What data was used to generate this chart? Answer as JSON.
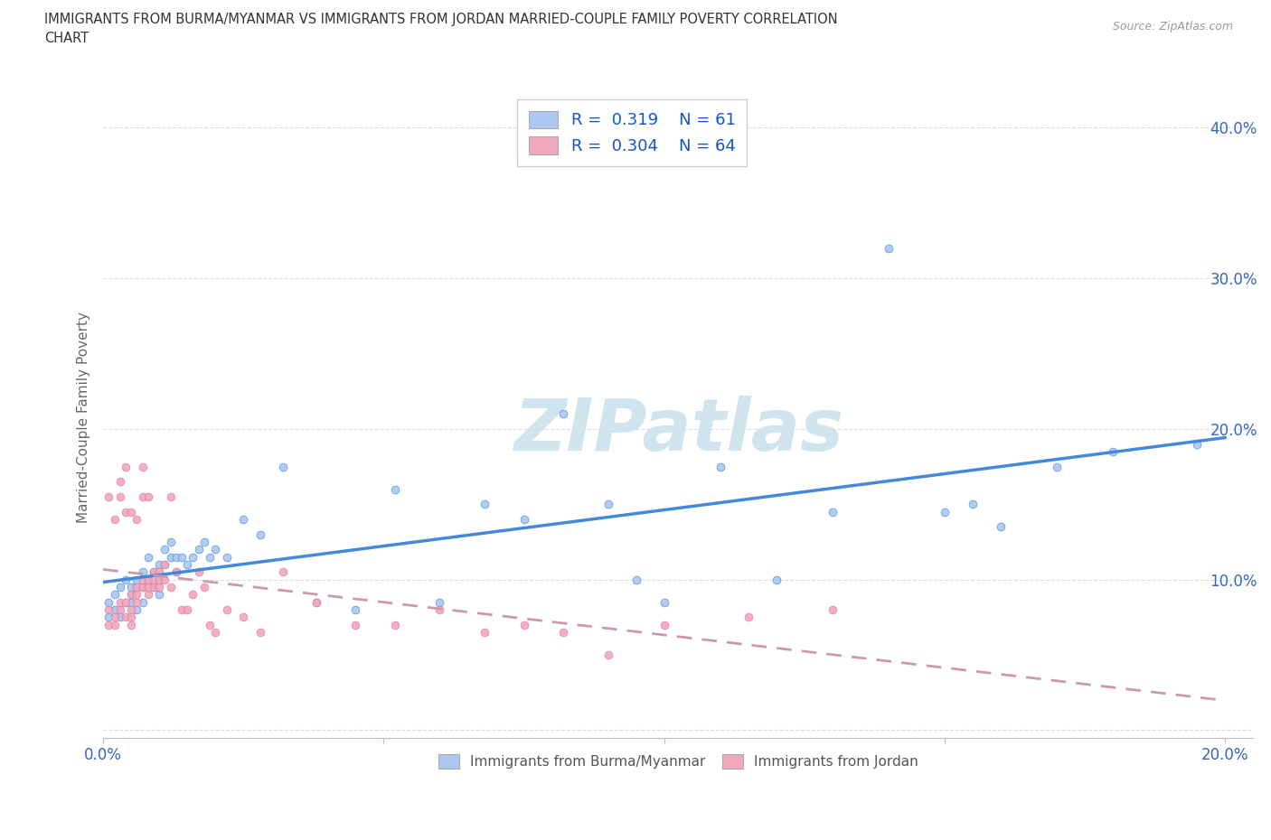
{
  "title": "IMMIGRANTS FROM BURMA/MYANMAR VS IMMIGRANTS FROM JORDAN MARRIED-COUPLE FAMILY POVERTY CORRELATION\nCHART",
  "source": "Source: ZipAtlas.com",
  "ylabel": "Married-Couple Family Poverty",
  "xlim": [
    0.0,
    0.205
  ],
  "ylim": [
    -0.005,
    0.42
  ],
  "xticks": [
    0.0,
    0.05,
    0.1,
    0.15,
    0.2
  ],
  "xtick_labels": [
    "0.0%",
    "",
    "",
    "",
    "20.0%"
  ],
  "yticks": [
    0.0,
    0.1,
    0.2,
    0.3,
    0.4
  ],
  "ytick_labels": [
    "",
    "10.0%",
    "20.0%",
    "30.0%",
    "40.0%"
  ],
  "burma_R": 0.319,
  "burma_N": 61,
  "jordan_R": 0.304,
  "jordan_N": 64,
  "burma_color": "#aac8f0",
  "jordan_color": "#f0a8bc",
  "burma_line_color": "#4488dd",
  "jordan_line_color": "#cc99aa",
  "watermark": "ZIPatlas",
  "watermark_color": "#d0e4f0",
  "grid_color": "#dddddd",
  "burma_x": [
    0.001,
    0.001,
    0.002,
    0.002,
    0.003,
    0.003,
    0.004,
    0.004,
    0.005,
    0.005,
    0.005,
    0.006,
    0.006,
    0.006,
    0.007,
    0.007,
    0.007,
    0.008,
    0.008,
    0.009,
    0.009,
    0.01,
    0.01,
    0.01,
    0.011,
    0.011,
    0.012,
    0.012,
    0.013,
    0.013,
    0.014,
    0.015,
    0.016,
    0.017,
    0.018,
    0.019,
    0.02,
    0.022,
    0.025,
    0.028,
    0.032,
    0.038,
    0.045,
    0.052,
    0.06,
    0.068,
    0.075,
    0.082,
    0.09,
    0.095,
    0.1,
    0.11,
    0.12,
    0.13,
    0.14,
    0.15,
    0.155,
    0.16,
    0.17,
    0.18,
    0.195
  ],
  "burma_y": [
    0.075,
    0.085,
    0.08,
    0.09,
    0.095,
    0.075,
    0.085,
    0.1,
    0.09,
    0.095,
    0.085,
    0.095,
    0.1,
    0.08,
    0.095,
    0.105,
    0.085,
    0.1,
    0.115,
    0.095,
    0.105,
    0.1,
    0.11,
    0.09,
    0.11,
    0.12,
    0.115,
    0.125,
    0.115,
    0.105,
    0.115,
    0.11,
    0.115,
    0.12,
    0.125,
    0.115,
    0.12,
    0.115,
    0.14,
    0.13,
    0.175,
    0.085,
    0.08,
    0.16,
    0.085,
    0.15,
    0.14,
    0.21,
    0.15,
    0.1,
    0.085,
    0.175,
    0.1,
    0.145,
    0.32,
    0.145,
    0.15,
    0.135,
    0.175,
    0.185,
    0.19
  ],
  "jordan_x": [
    0.001,
    0.001,
    0.001,
    0.002,
    0.002,
    0.002,
    0.003,
    0.003,
    0.003,
    0.003,
    0.004,
    0.004,
    0.004,
    0.004,
    0.005,
    0.005,
    0.005,
    0.005,
    0.005,
    0.006,
    0.006,
    0.006,
    0.006,
    0.007,
    0.007,
    0.007,
    0.007,
    0.008,
    0.008,
    0.008,
    0.008,
    0.009,
    0.009,
    0.009,
    0.01,
    0.01,
    0.01,
    0.011,
    0.011,
    0.012,
    0.012,
    0.013,
    0.014,
    0.015,
    0.016,
    0.017,
    0.018,
    0.019,
    0.02,
    0.022,
    0.025,
    0.028,
    0.032,
    0.038,
    0.045,
    0.052,
    0.06,
    0.068,
    0.075,
    0.082,
    0.09,
    0.1,
    0.115,
    0.13
  ],
  "jordan_y": [
    0.07,
    0.08,
    0.155,
    0.07,
    0.075,
    0.14,
    0.08,
    0.085,
    0.155,
    0.165,
    0.075,
    0.085,
    0.175,
    0.145,
    0.07,
    0.075,
    0.08,
    0.09,
    0.145,
    0.085,
    0.09,
    0.095,
    0.14,
    0.095,
    0.1,
    0.155,
    0.175,
    0.09,
    0.095,
    0.1,
    0.155,
    0.095,
    0.105,
    0.1,
    0.095,
    0.1,
    0.105,
    0.1,
    0.11,
    0.095,
    0.155,
    0.105,
    0.08,
    0.08,
    0.09,
    0.105,
    0.095,
    0.07,
    0.065,
    0.08,
    0.075,
    0.065,
    0.105,
    0.085,
    0.07,
    0.07,
    0.08,
    0.065,
    0.07,
    0.065,
    0.05,
    0.07,
    0.075,
    0.08
  ]
}
